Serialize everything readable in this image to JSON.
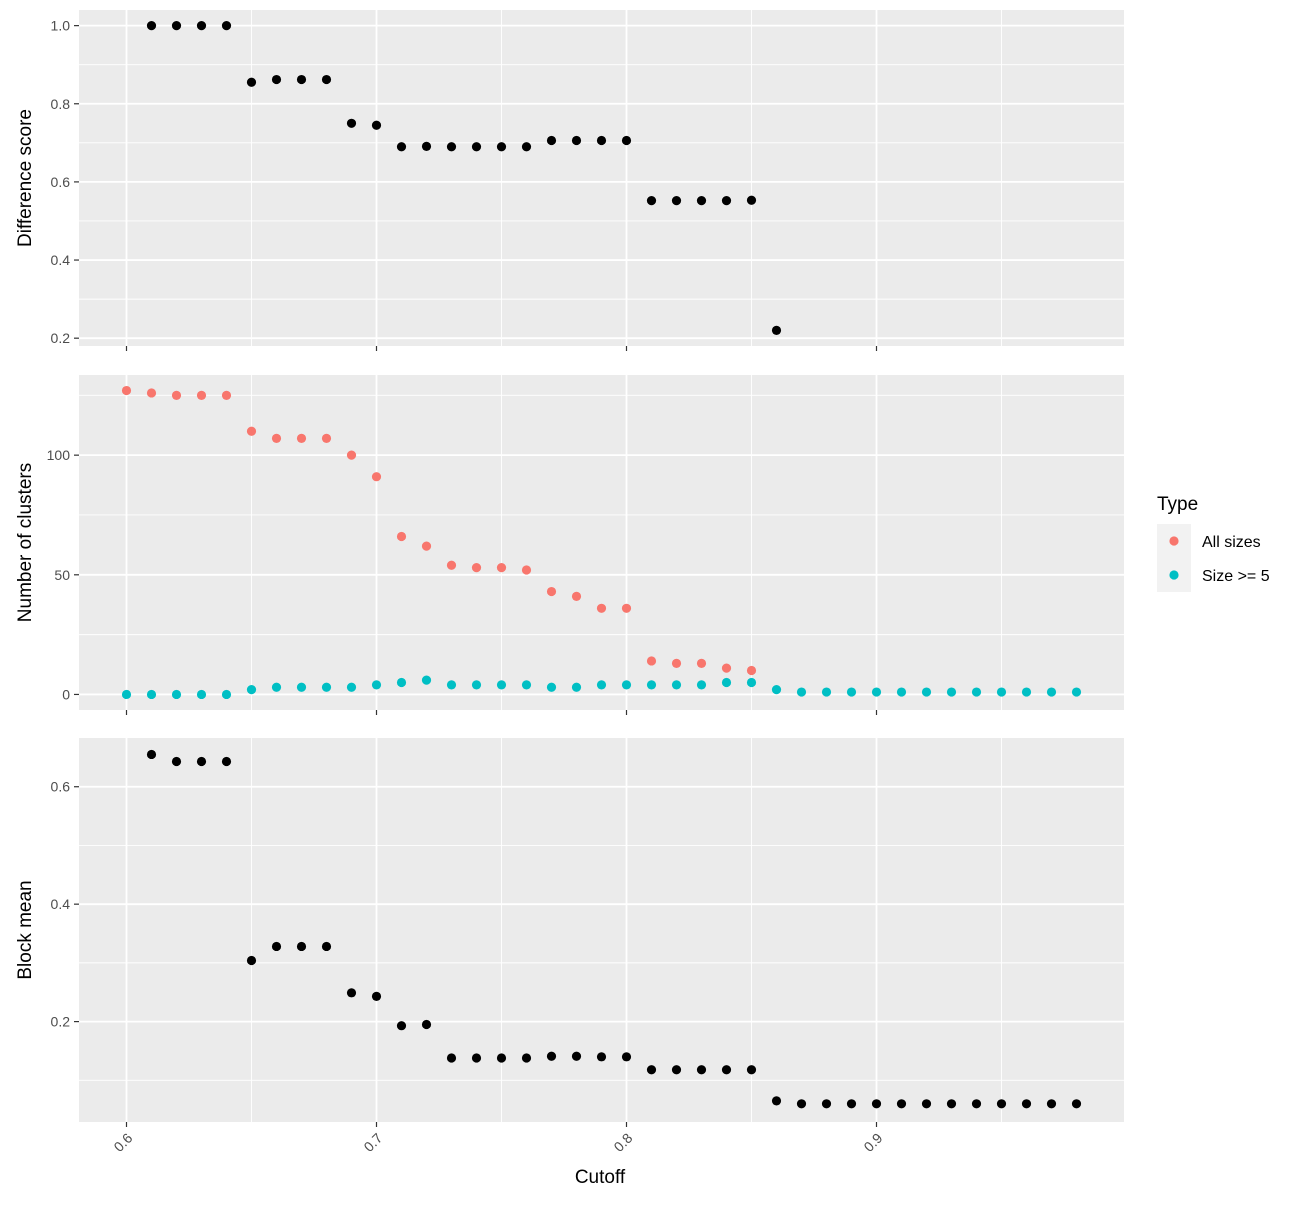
{
  "legend": {
    "title": "Type",
    "entries": [
      {
        "label": "All sizes",
        "color": "#F8766D"
      },
      {
        "label": "Size >= 5",
        "color": "#00BFC4"
      }
    ]
  },
  "colors": {
    "panel_bg": "#EBEBEB",
    "grid": "#FFFFFF",
    "point": "#000000",
    "all_sizes": "#F8766D",
    "size_ge_5": "#00BFC4"
  },
  "xaxis": {
    "label": "Cutoff",
    "range": [
      0.581,
      0.999
    ],
    "breaks": [
      0.6,
      0.7,
      0.8,
      0.9
    ],
    "minor_breaks": [
      0.65,
      0.75,
      0.85,
      0.95
    ],
    "tick_labels": [
      "0.6",
      "0.7",
      "0.8",
      "0.9"
    ]
  },
  "chart_data": [
    {
      "type": "scatter",
      "title": "",
      "xlabel": "Cutoff",
      "ylabel": "Difference score",
      "ylim": [
        0.18,
        1.04
      ],
      "y_breaks": [
        0.2,
        0.4,
        0.6,
        0.8,
        1.0
      ],
      "y_minor_breaks": [
        0.3,
        0.5,
        0.7,
        0.9
      ],
      "y_tick_labels": [
        "0.2",
        "0.4",
        "0.6",
        "0.8",
        "1.0"
      ],
      "series": [
        {
          "color": "#000000",
          "x": [
            0.61,
            0.62,
            0.63,
            0.64,
            0.65,
            0.66,
            0.67,
            0.68,
            0.69,
            0.7,
            0.71,
            0.72,
            0.73,
            0.74,
            0.75,
            0.76,
            0.77,
            0.78,
            0.79,
            0.8,
            0.81,
            0.82,
            0.83,
            0.84,
            0.85,
            0.86
          ],
          "y": [
            1.0,
            1.0,
            1.0,
            1.0,
            0.855,
            0.862,
            0.862,
            0.862,
            0.75,
            0.745,
            0.69,
            0.691,
            0.69,
            0.69,
            0.69,
            0.69,
            0.706,
            0.706,
            0.706,
            0.706,
            0.552,
            0.552,
            0.552,
            0.552,
            0.553,
            0.22
          ]
        }
      ]
    },
    {
      "type": "scatter",
      "title": "",
      "xlabel": "Cutoff",
      "ylabel": "Number of clusters",
      "ylim": [
        -6.5,
        133.5
      ],
      "y_breaks": [
        0,
        50,
        100
      ],
      "y_minor_breaks": [
        25,
        75,
        125
      ],
      "y_tick_labels": [
        "0",
        "50",
        "100"
      ],
      "series": [
        {
          "name": "All sizes",
          "color": "#F8766D",
          "x": [
            0.6,
            0.61,
            0.62,
            0.63,
            0.64,
            0.65,
            0.66,
            0.67,
            0.68,
            0.69,
            0.7,
            0.71,
            0.72,
            0.73,
            0.74,
            0.75,
            0.76,
            0.77,
            0.78,
            0.79,
            0.8,
            0.81,
            0.82,
            0.83,
            0.84,
            0.85
          ],
          "y": [
            127,
            126,
            125,
            125,
            125,
            110,
            107,
            107,
            107,
            100,
            91,
            66,
            62,
            54,
            53,
            53,
            52,
            43,
            41,
            36,
            36,
            14,
            13,
            13,
            11,
            10
          ]
        },
        {
          "name": "Size >= 5",
          "color": "#00BFC4",
          "x": [
            0.6,
            0.61,
            0.62,
            0.63,
            0.64,
            0.65,
            0.66,
            0.67,
            0.68,
            0.69,
            0.7,
            0.71,
            0.72,
            0.73,
            0.74,
            0.75,
            0.76,
            0.77,
            0.78,
            0.79,
            0.8,
            0.81,
            0.82,
            0.83,
            0.84,
            0.85,
            0.86,
            0.87,
            0.88,
            0.89,
            0.9,
            0.91,
            0.92,
            0.93,
            0.94,
            0.95,
            0.96,
            0.97,
            0.98
          ],
          "y": [
            0,
            0,
            0,
            0,
            0,
            2,
            3,
            3,
            3,
            3,
            4,
            5,
            6,
            4,
            4,
            4,
            4,
            3,
            3,
            4,
            4,
            4,
            4,
            4,
            5,
            5,
            2,
            1,
            1,
            1,
            1,
            1,
            1,
            1,
            1,
            1,
            1,
            1,
            1
          ]
        }
      ]
    },
    {
      "type": "scatter",
      "title": "",
      "xlabel": "Cutoff",
      "ylabel": "Block mean",
      "ylim": [
        0.029,
        0.683
      ],
      "y_breaks": [
        0.2,
        0.4,
        0.6
      ],
      "y_minor_breaks": [
        0.1,
        0.3,
        0.5
      ],
      "y_tick_labels": [
        "0.2",
        "0.4",
        "0.6"
      ],
      "series": [
        {
          "color": "#000000",
          "x": [
            0.61,
            0.62,
            0.63,
            0.64,
            0.65,
            0.66,
            0.67,
            0.68,
            0.69,
            0.7,
            0.71,
            0.72,
            0.73,
            0.74,
            0.75,
            0.76,
            0.77,
            0.78,
            0.79,
            0.8,
            0.81,
            0.82,
            0.83,
            0.84,
            0.85,
            0.86,
            0.87,
            0.88,
            0.89,
            0.9,
            0.91,
            0.92,
            0.93,
            0.94,
            0.95,
            0.96,
            0.97,
            0.98
          ],
          "y": [
            0.655,
            0.643,
            0.643,
            0.643,
            0.304,
            0.328,
            0.328,
            0.328,
            0.249,
            0.243,
            0.193,
            0.195,
            0.138,
            0.138,
            0.138,
            0.138,
            0.141,
            0.141,
            0.14,
            0.14,
            0.118,
            0.118,
            0.118,
            0.118,
            0.118,
            0.065,
            0.06,
            0.06,
            0.06,
            0.06,
            0.06,
            0.06,
            0.06,
            0.06,
            0.06,
            0.06,
            0.06,
            0.06
          ]
        }
      ]
    }
  ]
}
